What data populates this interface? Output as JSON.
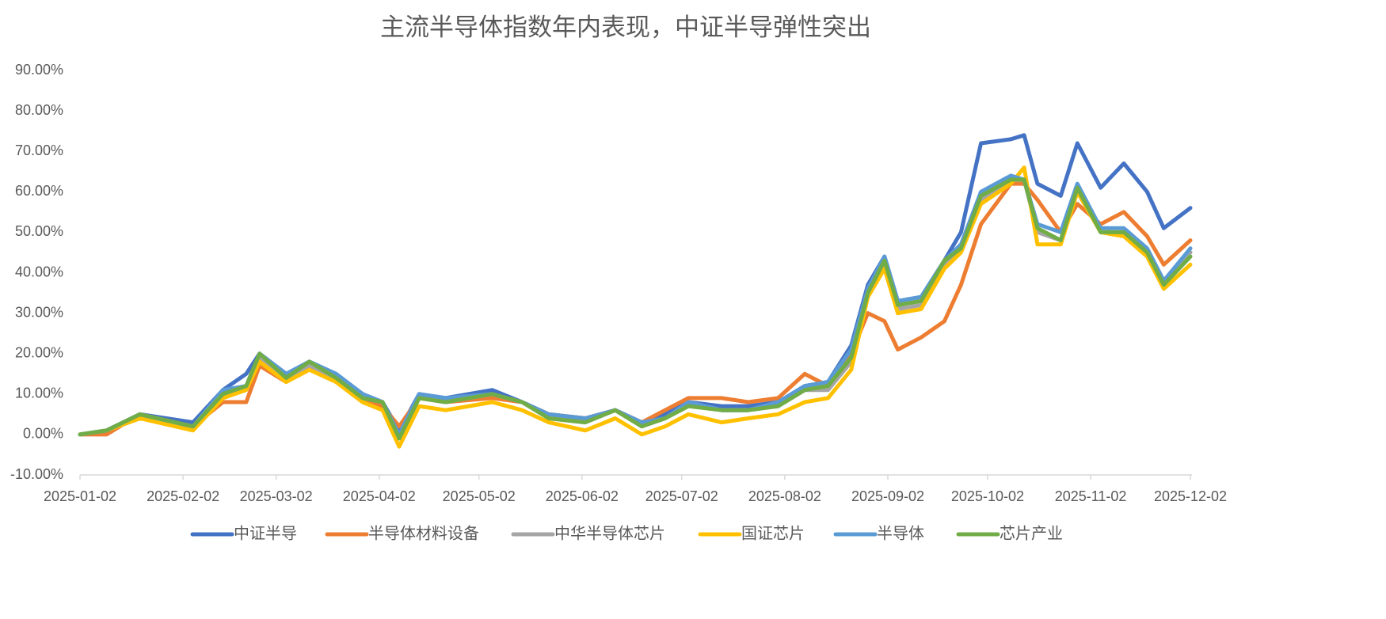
{
  "chart_data": {
    "type": "line",
    "title": "主流半导体指数年内表现，中证半导弹性突出",
    "x": [
      "2025-01-02",
      "2025-01-10",
      "2025-01-20",
      "2025-02-05",
      "2025-02-14",
      "2025-02-21",
      "2025-02-25",
      "2025-03-05",
      "2025-03-12",
      "2025-03-20",
      "2025-03-28",
      "2025-04-03",
      "2025-04-08",
      "2025-04-14",
      "2025-04-22",
      "2025-05-06",
      "2025-05-15",
      "2025-05-23",
      "2025-06-03",
      "2025-06-12",
      "2025-06-20",
      "2025-06-27",
      "2025-07-04",
      "2025-07-14",
      "2025-07-22",
      "2025-07-31",
      "2025-08-08",
      "2025-08-15",
      "2025-08-22",
      "2025-08-27",
      "2025-09-01",
      "2025-09-05",
      "2025-09-12",
      "2025-09-19",
      "2025-09-24",
      "2025-09-30",
      "2025-10-09",
      "2025-10-13",
      "2025-10-17",
      "2025-10-24",
      "2025-10-29",
      "2025-11-05",
      "2025-11-12",
      "2025-11-19",
      "2025-11-24",
      "2025-12-02"
    ],
    "series": [
      {
        "name": "中证半导",
        "color": "#4472c4",
        "values": [
          0,
          1,
          5,
          3,
          11,
          15,
          20,
          15,
          18,
          15,
          10,
          8,
          1,
          10,
          9,
          11,
          8,
          5,
          4,
          6,
          3,
          5,
          8,
          7,
          7,
          8,
          12,
          13,
          22,
          37,
          44,
          33,
          34,
          43,
          50,
          72,
          73,
          74,
          62,
          59,
          72,
          61,
          67,
          60,
          51,
          56
        ]
      },
      {
        "name": "半导体材料设备",
        "color": "#ed7d31",
        "values": [
          0,
          0,
          5,
          2,
          8,
          8,
          17,
          13,
          18,
          13,
          9,
          7,
          2,
          9,
          8,
          9,
          8,
          5,
          4,
          6,
          3,
          6,
          9,
          9,
          8,
          9,
          15,
          12,
          20,
          30,
          28,
          21,
          24,
          28,
          37,
          52,
          62,
          62,
          58,
          50,
          57,
          52,
          55,
          49,
          42,
          48
        ]
      },
      {
        "name": "中华半导体芯片",
        "color": "#a5a5a5",
        "values": [
          0,
          1,
          4,
          2,
          10,
          12,
          19,
          14,
          17,
          14,
          9,
          8,
          -1,
          9,
          8,
          10,
          8,
          4,
          3,
          6,
          2,
          4,
          8,
          6,
          6,
          7,
          11,
          11,
          18,
          35,
          42,
          31,
          32,
          42,
          46,
          58,
          63,
          63,
          50,
          48,
          61,
          50,
          50,
          44,
          38,
          45
        ]
      },
      {
        "name": "国证芯片",
        "color": "#ffc000",
        "values": [
          0,
          1,
          4,
          1,
          9,
          11,
          18,
          13,
          16,
          13,
          8,
          6,
          -3,
          7,
          6,
          8,
          6,
          3,
          1,
          4,
          0,
          2,
          5,
          3,
          4,
          5,
          8,
          9,
          16,
          34,
          41,
          30,
          31,
          41,
          45,
          57,
          62,
          66,
          47,
          47,
          60,
          50,
          49,
          44,
          36,
          42
        ]
      },
      {
        "name": "半导体",
        "color": "#5b9bd5",
        "values": [
          0,
          1,
          5,
          2,
          11,
          12,
          20,
          15,
          18,
          15,
          10,
          8,
          0,
          10,
          9,
          10,
          8,
          5,
          4,
          6,
          3,
          4,
          8,
          6,
          6,
          8,
          12,
          13,
          21,
          36,
          44,
          33,
          34,
          43,
          47,
          60,
          64,
          63,
          52,
          50,
          62,
          51,
          51,
          46,
          38,
          46
        ]
      },
      {
        "name": "芯片产业",
        "color": "#70ad47",
        "values": [
          0,
          1,
          5,
          2,
          10,
          12,
          20,
          14,
          18,
          14,
          9,
          8,
          -1,
          9,
          8,
          10,
          8,
          4,
          3,
          6,
          2,
          4,
          7,
          6,
          6,
          7,
          11,
          12,
          19,
          35,
          43,
          32,
          33,
          43,
          46,
          59,
          63,
          63,
          51,
          48,
          61,
          50,
          50,
          45,
          37,
          44
        ]
      }
    ],
    "xlim": [
      "2025-01-02",
      "2025-12-02"
    ],
    "xticks": [
      "2025-01-02",
      "2025-02-02",
      "2025-03-02",
      "2025-04-02",
      "2025-05-02",
      "2025-06-02",
      "2025-07-02",
      "2025-08-02",
      "2025-09-02",
      "2025-10-02",
      "2025-11-02",
      "2025-12-02"
    ],
    "ylim": [
      -10,
      90
    ],
    "yticks": [
      {
        "value": -10,
        "label": "-10.00%"
      },
      {
        "value": 0,
        "label": "0.00%"
      },
      {
        "value": 10,
        "label": "10.00%"
      },
      {
        "value": 20,
        "label": "20.00%"
      },
      {
        "value": 30,
        "label": "30.00%"
      },
      {
        "value": 40,
        "label": "40.00%"
      },
      {
        "value": 50,
        "label": "50.00%"
      },
      {
        "value": 60,
        "label": "60.00%"
      },
      {
        "value": 70,
        "label": "70.00%"
      },
      {
        "value": 80,
        "label": "80.00%"
      },
      {
        "value": 90,
        "label": "90.00%"
      }
    ],
    "legend": "bottom"
  }
}
